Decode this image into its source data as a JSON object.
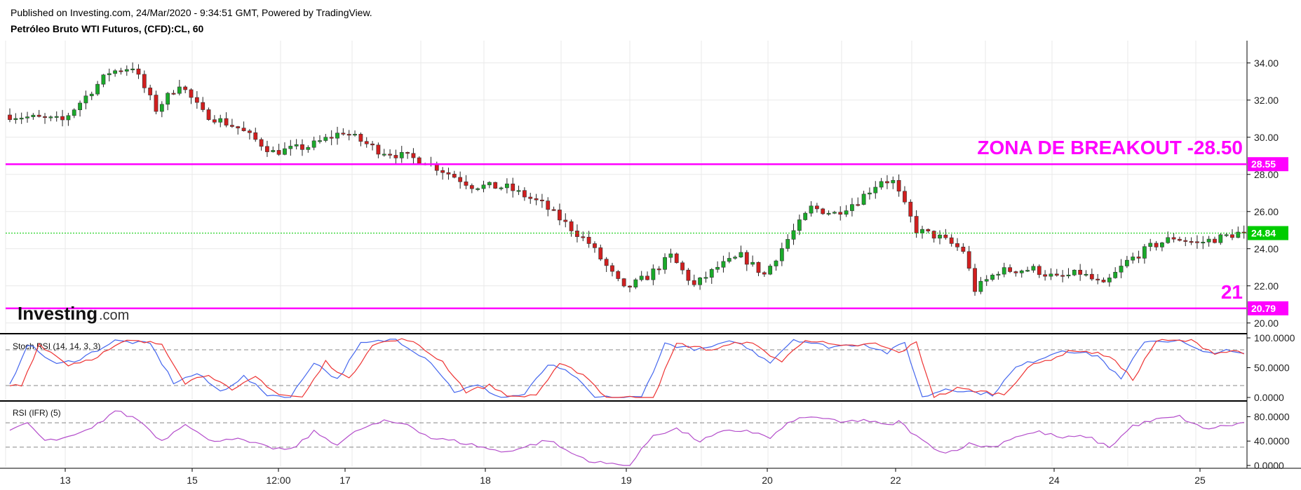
{
  "header": {
    "published": "Published on Investing.com, 24/Mar/2020 - 9:34:51 GMT, Powered by TradingView.",
    "title": "Petróleo Bruto WTI Futuros, (CFD):CL, 60"
  },
  "logo": {
    "text": "Investing",
    "suffix": ".com"
  },
  "colors": {
    "up": "#1aaa2a",
    "down": "#d11f1f",
    "magenta": "#ff00ff",
    "last_price": "#00cc00",
    "stoch_k": "#4466ee",
    "stoch_d": "#ee3333",
    "rsi": "#b44ecb",
    "grid": "#e9e9e9",
    "axis": "#000000"
  },
  "chart_data": [
    {
      "type": "candlestick",
      "title": "Petróleo Bruto WTI Futuros, (CFD):CL, 60",
      "ylim": [
        19.5,
        35.2
      ],
      "yticks": [
        "34.00",
        "32.00",
        "30.00",
        "28.00",
        "26.00",
        "24.00",
        "22.00",
        "20.00"
      ],
      "xticks": [
        "13",
        "15",
        "12:00",
        "17",
        "18",
        "19",
        "20",
        "22",
        "24",
        "25"
      ],
      "anchors": [
        [
          0,
          31.2
        ],
        [
          10,
          30.9
        ],
        [
          18,
          33.5
        ],
        [
          22,
          33.8
        ],
        [
          26,
          31.5
        ],
        [
          30,
          32.9
        ],
        [
          34,
          31.3
        ],
        [
          40,
          30.5
        ],
        [
          46,
          29.2
        ],
        [
          52,
          29.5
        ],
        [
          58,
          30.3
        ],
        [
          64,
          29.3
        ],
        [
          72,
          28.7
        ],
        [
          80,
          27.4
        ],
        [
          86,
          27.3
        ],
        [
          92,
          26.4
        ],
        [
          100,
          24.3
        ],
        [
          106,
          21.8
        ],
        [
          110,
          22.5
        ],
        [
          114,
          23.6
        ],
        [
          118,
          22.0
        ],
        [
          122,
          23.0
        ],
        [
          126,
          23.6
        ],
        [
          130,
          22.6
        ],
        [
          134,
          24.5
        ],
        [
          138,
          26.2
        ],
        [
          142,
          25.9
        ],
        [
          146,
          26.6
        ],
        [
          150,
          27.7
        ],
        [
          152,
          27.6
        ],
        [
          156,
          25.0
        ],
        [
          160,
          24.6
        ],
        [
          164,
          23.9
        ],
        [
          166,
          21.8
        ],
        [
          170,
          22.8
        ],
        [
          176,
          22.9
        ],
        [
          180,
          22.4
        ],
        [
          184,
          22.7
        ],
        [
          188,
          22.0
        ],
        [
          192,
          23.3
        ],
        [
          196,
          24.1
        ],
        [
          200,
          24.6
        ],
        [
          204,
          24.3
        ],
        [
          208,
          24.6
        ],
        [
          211,
          24.84
        ]
      ],
      "levels": [
        {
          "value": 28.55,
          "label": "28.55",
          "annotation": "ZONA DE BREAKOUT -28.50"
        },
        {
          "value": 20.79,
          "label": "20.79",
          "annotation": "21"
        }
      ],
      "last_price": {
        "value": 24.84,
        "label": "24.84"
      }
    },
    {
      "type": "line",
      "title": "Stoch RSI (14, 14, 3, 3)",
      "ylim": [
        0,
        100
      ],
      "yticks": [
        "100.0000",
        "50.0000",
        "0.0000"
      ],
      "bands": [
        80,
        20
      ],
      "anchors": [
        [
          0,
          20
        ],
        [
          3,
          90
        ],
        [
          8,
          55
        ],
        [
          12,
          65
        ],
        [
          18,
          95
        ],
        [
          24,
          90
        ],
        [
          28,
          25
        ],
        [
          32,
          40
        ],
        [
          36,
          10
        ],
        [
          40,
          35
        ],
        [
          44,
          5
        ],
        [
          48,
          0
        ],
        [
          52,
          60
        ],
        [
          56,
          30
        ],
        [
          60,
          90
        ],
        [
          66,
          98
        ],
        [
          72,
          60
        ],
        [
          76,
          10
        ],
        [
          80,
          20
        ],
        [
          84,
          0
        ],
        [
          88,
          5
        ],
        [
          92,
          55
        ],
        [
          96,
          40
        ],
        [
          100,
          0
        ],
        [
          108,
          0
        ],
        [
          112,
          90
        ],
        [
          118,
          80
        ],
        [
          124,
          95
        ],
        [
          130,
          60
        ],
        [
          134,
          98
        ],
        [
          140,
          85
        ],
        [
          146,
          90
        ],
        [
          150,
          75
        ],
        [
          153,
          92
        ],
        [
          156,
          0
        ],
        [
          160,
          15
        ],
        [
          164,
          10
        ],
        [
          168,
          5
        ],
        [
          172,
          50
        ],
        [
          176,
          65
        ],
        [
          180,
          80
        ],
        [
          186,
          70
        ],
        [
          190,
          30
        ],
        [
          194,
          95
        ],
        [
          200,
          95
        ],
        [
          204,
          75
        ],
        [
          208,
          78
        ],
        [
          211,
          72
        ]
      ],
      "d_lag": 2
    },
    {
      "type": "line",
      "title": "RSI (IFR) (5)",
      "ylim": [
        0,
        100
      ],
      "yticks": [
        "80.0000",
        "40.0000",
        "0.0000"
      ],
      "bands": [
        70,
        30
      ],
      "anchors": [
        [
          0,
          55
        ],
        [
          3,
          70
        ],
        [
          6,
          40
        ],
        [
          10,
          45
        ],
        [
          14,
          60
        ],
        [
          18,
          90
        ],
        [
          22,
          75
        ],
        [
          26,
          40
        ],
        [
          30,
          70
        ],
        [
          34,
          40
        ],
        [
          38,
          45
        ],
        [
          44,
          30
        ],
        [
          48,
          25
        ],
        [
          52,
          55
        ],
        [
          56,
          35
        ],
        [
          60,
          60
        ],
        [
          64,
          72
        ],
        [
          68,
          68
        ],
        [
          72,
          45
        ],
        [
          76,
          40
        ],
        [
          80,
          32
        ],
        [
          84,
          22
        ],
        [
          88,
          30
        ],
        [
          92,
          42
        ],
        [
          96,
          20
        ],
        [
          100,
          5
        ],
        [
          106,
          0
        ],
        [
          110,
          50
        ],
        [
          114,
          60
        ],
        [
          118,
          40
        ],
        [
          122,
          55
        ],
        [
          126,
          58
        ],
        [
          130,
          45
        ],
        [
          134,
          75
        ],
        [
          138,
          80
        ],
        [
          142,
          70
        ],
        [
          146,
          75
        ],
        [
          150,
          65
        ],
        [
          152,
          72
        ],
        [
          156,
          40
        ],
        [
          160,
          20
        ],
        [
          164,
          35
        ],
        [
          168,
          30
        ],
        [
          172,
          48
        ],
        [
          176,
          55
        ],
        [
          180,
          45
        ],
        [
          184,
          48
        ],
        [
          188,
          30
        ],
        [
          192,
          65
        ],
        [
          196,
          75
        ],
        [
          200,
          80
        ],
        [
          204,
          60
        ],
        [
          208,
          65
        ],
        [
          211,
          70
        ]
      ]
    }
  ]
}
